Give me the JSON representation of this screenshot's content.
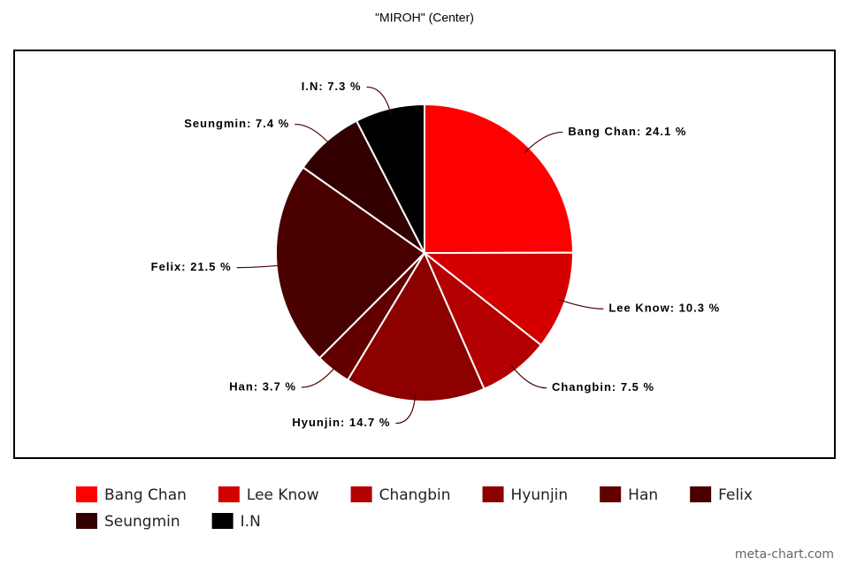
{
  "chart_data": {
    "type": "pie",
    "title": "\"MIROH\" (Center)",
    "categories": [
      "Bang Chan",
      "Lee Know",
      "Changbin",
      "Hyunjin",
      "Han",
      "Felix",
      "Seungmin",
      "I.N"
    ],
    "values": [
      24.1,
      10.3,
      7.5,
      14.7,
      3.7,
      21.5,
      7.4,
      7.3
    ],
    "value_labels": [
      "Bang Chan: 24.1 %",
      "Lee Know: 10.3 %",
      "Changbin: 7.5 %",
      "Hyunjin: 14.7 %",
      "Han: 3.7 %",
      "Felix: 21.5 %",
      "Seungmin: 7.4 %",
      "I.N: 7.3 %"
    ],
    "colors": [
      "#ff0000",
      "#d40000",
      "#b40000",
      "#8c0000",
      "#620000",
      "#4b0000",
      "#320000",
      "#000000"
    ],
    "legend": "bottom",
    "watermark": "meta-chart.com"
  }
}
